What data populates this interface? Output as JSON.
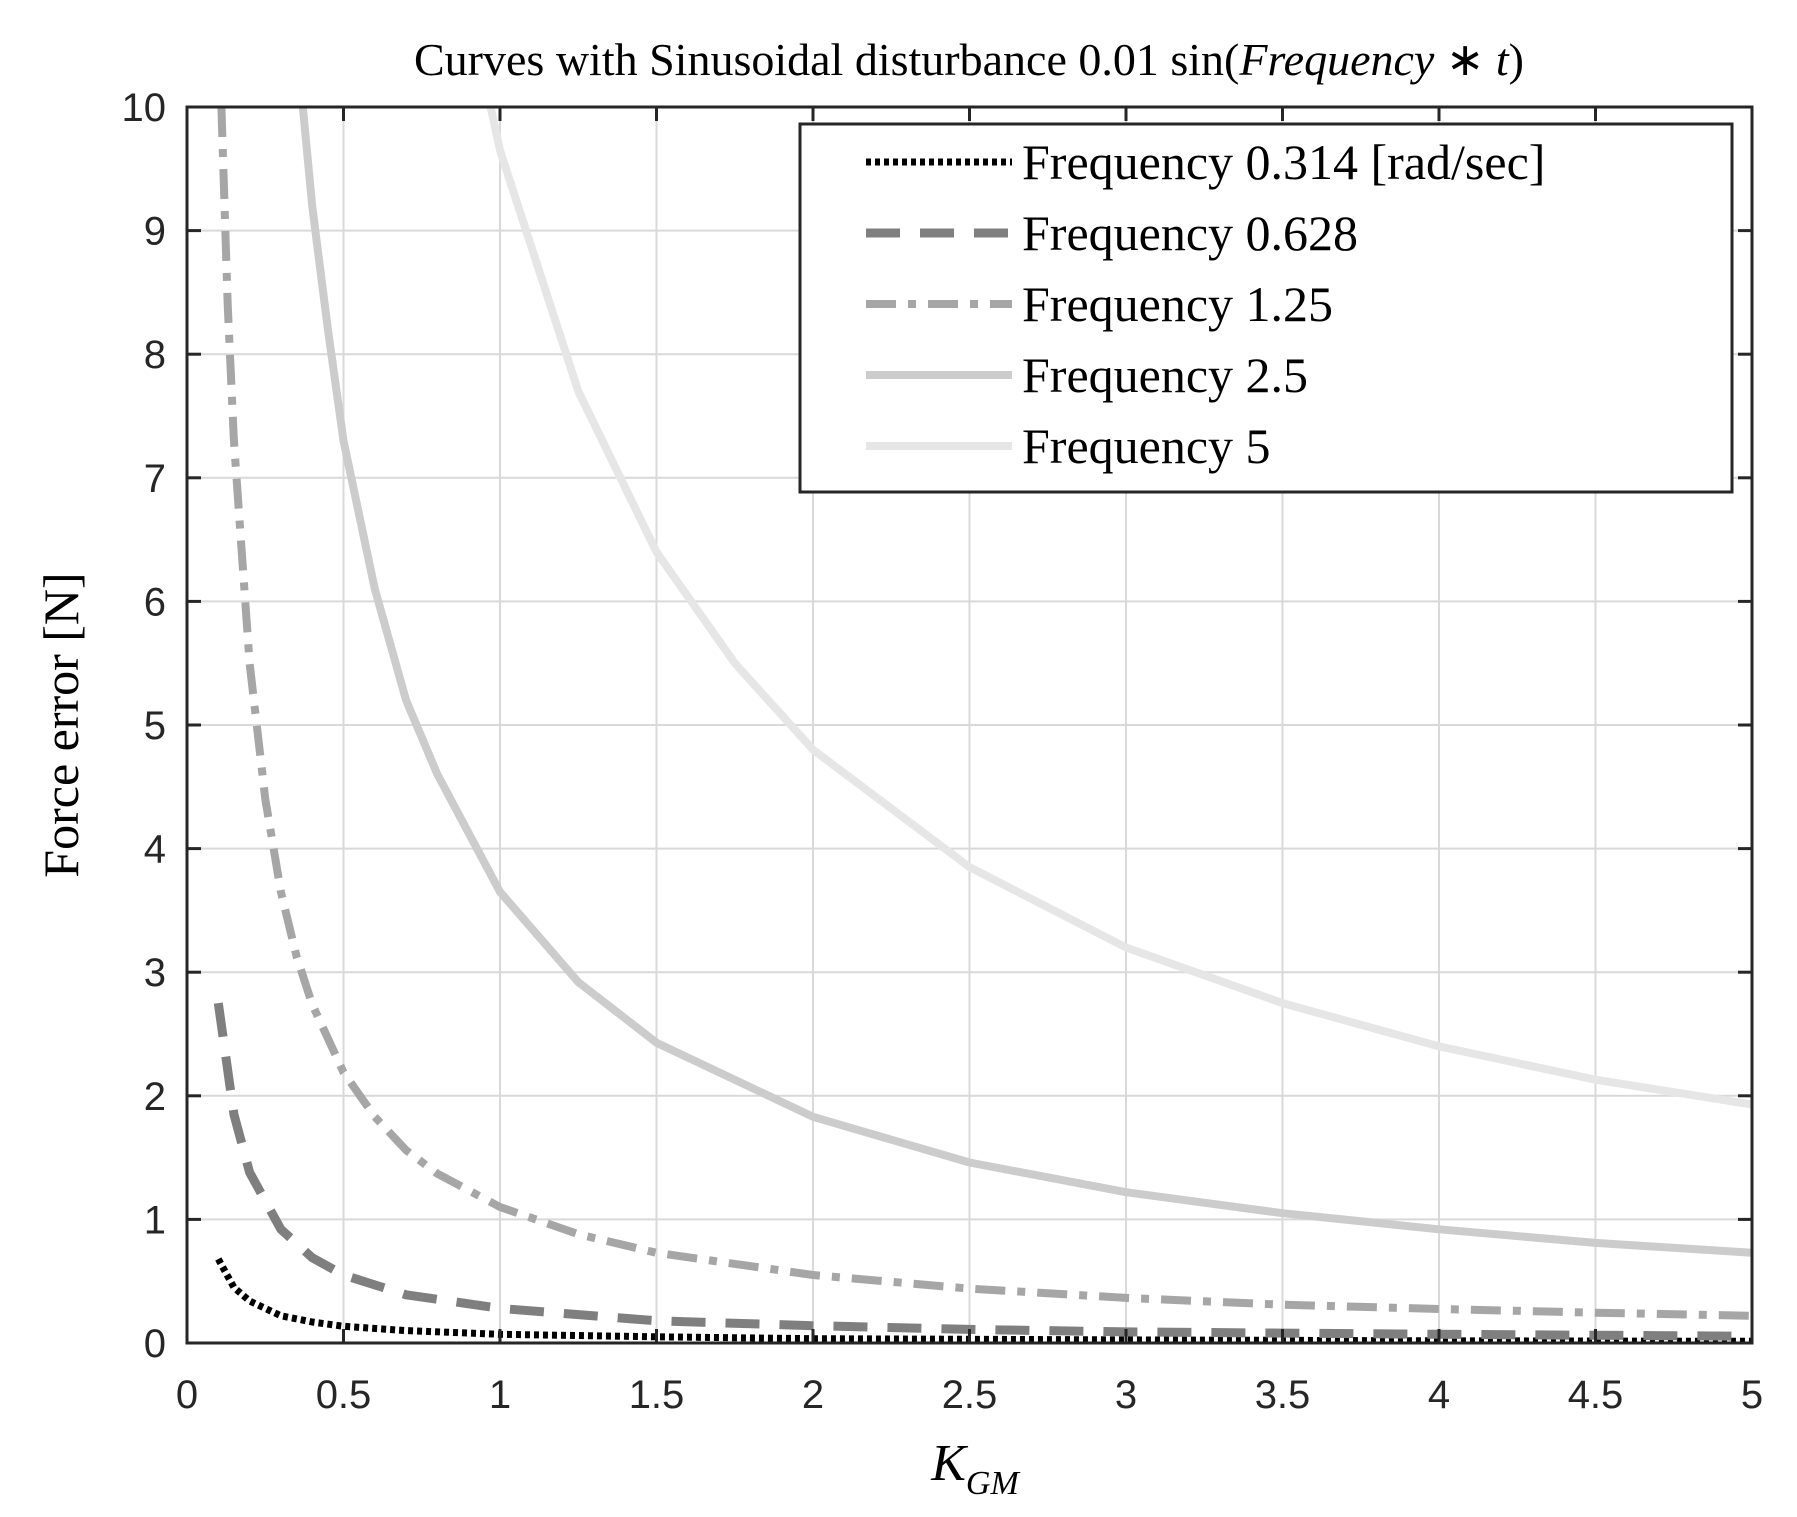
{
  "chart_data": {
    "type": "line",
    "title": {
      "prefix": "Curves with Sinusoidal disturbance 0.01 sin(",
      "var1": "Frequency",
      "op": " ∗ ",
      "var2": "t",
      "suffix": ")"
    },
    "xlabel": {
      "base": "K",
      "sub": "GM"
    },
    "ylabel": "Force error [N]",
    "xlim": [
      0,
      5
    ],
    "ylim": [
      0,
      10
    ],
    "xticks": [
      0,
      0.5,
      1,
      1.5,
      2,
      2.5,
      3,
      3.5,
      4,
      4.5,
      5
    ],
    "xtick_labels": [
      "0",
      "0.5",
      "1",
      "1.5",
      "2",
      "2.5",
      "3",
      "3.5",
      "4",
      "4.5",
      "5"
    ],
    "yticks": [
      0,
      1,
      2,
      3,
      4,
      5,
      6,
      7,
      8,
      9,
      10
    ],
    "ytick_labels": [
      "0",
      "1",
      "2",
      "3",
      "4",
      "5",
      "6",
      "7",
      "8",
      "9",
      "10"
    ],
    "grid": true,
    "legend_position": "top-right",
    "series": [
      {
        "name": "Frequency 0.314 [rad/sec]",
        "color": "#000000",
        "style": "dotted",
        "x": [
          0.1,
          0.15,
          0.2,
          0.3,
          0.4,
          0.5,
          0.7,
          1.0,
          1.5,
          2.0,
          3.0,
          4.0,
          5.0
        ],
        "values": [
          0.68,
          0.45,
          0.34,
          0.22,
          0.17,
          0.135,
          0.1,
          0.07,
          0.05,
          0.035,
          0.025,
          0.018,
          0.014
        ]
      },
      {
        "name": "Frequency 0.628",
        "color": "#7f7f7f",
        "style": "dashed",
        "x": [
          0.1,
          0.15,
          0.2,
          0.3,
          0.4,
          0.5,
          0.7,
          1.0,
          1.5,
          2.0,
          2.5,
          3.0,
          4.0,
          5.0
        ],
        "values": [
          2.75,
          1.85,
          1.38,
          0.92,
          0.69,
          0.55,
          0.39,
          0.28,
          0.18,
          0.14,
          0.11,
          0.09,
          0.07,
          0.055
        ]
      },
      {
        "name": "Frequency 1.25",
        "color": "#a6a6a6",
        "style": "dashdot",
        "x": [
          0.11,
          0.13,
          0.15,
          0.2,
          0.25,
          0.3,
          0.35,
          0.4,
          0.5,
          0.6,
          0.7,
          0.8,
          1.0,
          1.25,
          1.5,
          2.0,
          2.5,
          3.0,
          3.5,
          4.0,
          4.5,
          5.0
        ],
        "values": [
          10.0,
          8.4,
          7.3,
          5.5,
          4.4,
          3.65,
          3.13,
          2.74,
          2.19,
          1.83,
          1.56,
          1.37,
          1.1,
          0.88,
          0.73,
          0.55,
          0.44,
          0.365,
          0.31,
          0.275,
          0.245,
          0.22
        ]
      },
      {
        "name": "Frequency 2.5",
        "color": "#cccccc",
        "style": "solid",
        "x": [
          0.37,
          0.4,
          0.45,
          0.5,
          0.6,
          0.7,
          0.8,
          1.0,
          1.25,
          1.5,
          2.0,
          2.5,
          3.0,
          3.5,
          4.0,
          4.5,
          5.0
        ],
        "values": [
          10.0,
          9.2,
          8.2,
          7.3,
          6.1,
          5.2,
          4.6,
          3.65,
          2.92,
          2.43,
          1.83,
          1.46,
          1.22,
          1.05,
          0.92,
          0.81,
          0.73
        ]
      },
      {
        "name": "Frequency 5",
        "color": "#e6e6e6",
        "style": "solid",
        "x": [
          0.97,
          1.0,
          1.25,
          1.5,
          1.75,
          2.0,
          2.5,
          3.0,
          3.5,
          4.0,
          4.5,
          5.0
        ],
        "values": [
          10.0,
          9.65,
          7.7,
          6.4,
          5.5,
          4.8,
          3.85,
          3.2,
          2.75,
          2.4,
          2.13,
          1.93
        ]
      }
    ]
  }
}
